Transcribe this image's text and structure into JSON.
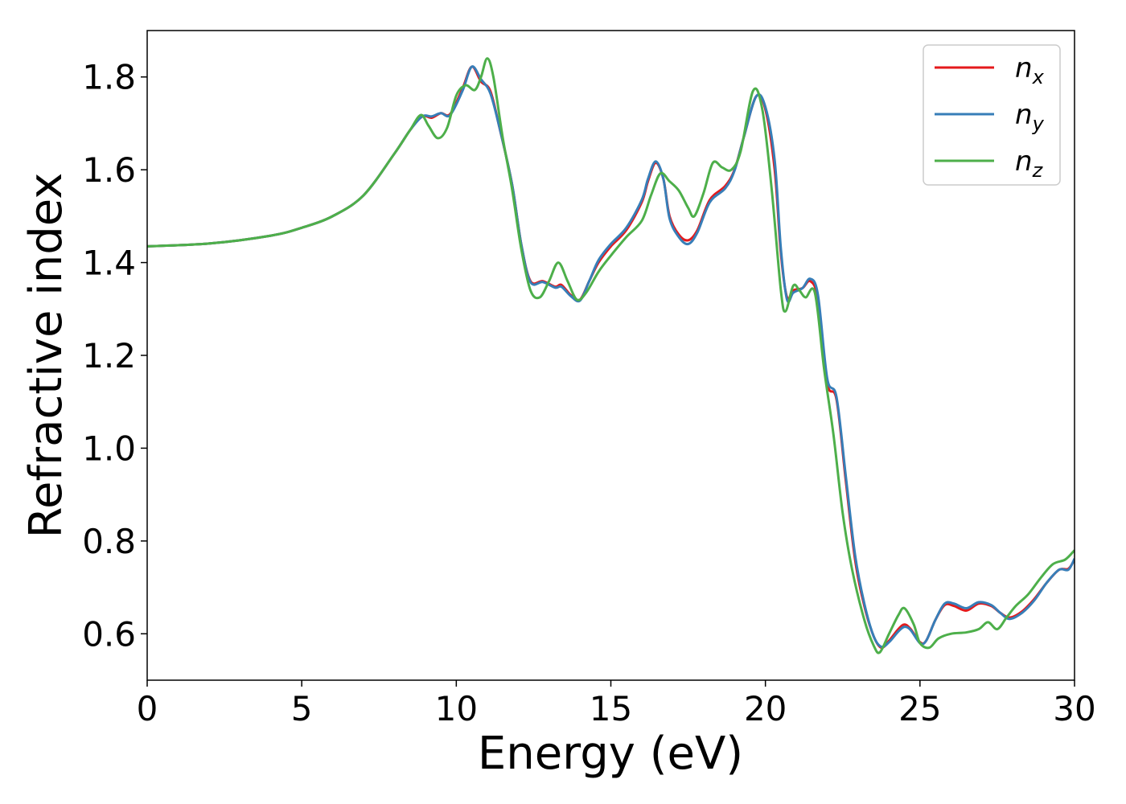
{
  "chart_data": {
    "type": "line",
    "title": "",
    "xlabel": "Energy (eV)",
    "ylabel": "Refractive index",
    "xlim": [
      0,
      30
    ],
    "ylim": [
      0.5,
      1.9
    ],
    "xticks": [
      0,
      5,
      10,
      15,
      20,
      25,
      30
    ],
    "xtick_labels": [
      "0",
      "5",
      "10",
      "15",
      "20",
      "25",
      "30"
    ],
    "yticks": [
      0.6,
      0.8,
      1.0,
      1.2,
      1.4,
      1.6,
      1.8
    ],
    "ytick_labels": [
      "0.6",
      "0.8",
      "1.0",
      "1.2",
      "1.4",
      "1.6",
      "1.8"
    ],
    "grid": false,
    "legend_position": "top-right",
    "series": [
      {
        "name": "n_x",
        "label_base": "n",
        "label_sub": "x",
        "color": "#e41a1c",
        "points": [
          [
            0,
            1.435
          ],
          [
            2,
            1.441
          ],
          [
            4,
            1.458
          ],
          [
            5,
            1.475
          ],
          [
            6,
            1.5
          ],
          [
            7,
            1.545
          ],
          [
            8,
            1.635
          ],
          [
            8.5,
            1.685
          ],
          [
            8.9,
            1.715
          ],
          [
            9.2,
            1.712
          ],
          [
            9.5,
            1.722
          ],
          [
            9.8,
            1.72
          ],
          [
            10.2,
            1.775
          ],
          [
            10.5,
            1.822
          ],
          [
            10.8,
            1.79
          ],
          [
            11.1,
            1.77
          ],
          [
            11.4,
            1.69
          ],
          [
            11.8,
            1.57
          ],
          [
            12.1,
            1.44
          ],
          [
            12.4,
            1.36
          ],
          [
            12.8,
            1.36
          ],
          [
            13.2,
            1.348
          ],
          [
            13.4,
            1.352
          ],
          [
            13.7,
            1.33
          ],
          [
            14.0,
            1.32
          ],
          [
            14.3,
            1.36
          ],
          [
            14.6,
            1.4
          ],
          [
            15.0,
            1.435
          ],
          [
            15.5,
            1.47
          ],
          [
            16.0,
            1.53
          ],
          [
            16.2,
            1.575
          ],
          [
            16.45,
            1.615
          ],
          [
            16.7,
            1.58
          ],
          [
            16.9,
            1.5
          ],
          [
            17.2,
            1.46
          ],
          [
            17.5,
            1.448
          ],
          [
            17.8,
            1.47
          ],
          [
            18.2,
            1.535
          ],
          [
            18.7,
            1.565
          ],
          [
            19.0,
            1.6
          ],
          [
            19.3,
            1.67
          ],
          [
            19.7,
            1.758
          ],
          [
            20.0,
            1.73
          ],
          [
            20.3,
            1.6
          ],
          [
            20.5,
            1.42
          ],
          [
            20.7,
            1.325
          ],
          [
            20.9,
            1.34
          ],
          [
            21.2,
            1.345
          ],
          [
            21.45,
            1.36
          ],
          [
            21.7,
            1.32
          ],
          [
            22.0,
            1.14
          ],
          [
            22.3,
            1.105
          ],
          [
            22.6,
            0.93
          ],
          [
            22.9,
            0.76
          ],
          [
            23.2,
            0.66
          ],
          [
            23.5,
            0.595
          ],
          [
            23.75,
            0.57
          ],
          [
            24.0,
            0.585
          ],
          [
            24.3,
            0.61
          ],
          [
            24.5,
            0.62
          ],
          [
            24.7,
            0.61
          ],
          [
            25.0,
            0.582
          ],
          [
            25.2,
            0.585
          ],
          [
            25.5,
            0.63
          ],
          [
            25.8,
            0.662
          ],
          [
            26.1,
            0.66
          ],
          [
            26.5,
            0.65
          ],
          [
            26.9,
            0.665
          ],
          [
            27.3,
            0.66
          ],
          [
            27.6,
            0.645
          ],
          [
            27.9,
            0.635
          ],
          [
            28.3,
            0.648
          ],
          [
            28.7,
            0.675
          ],
          [
            29.1,
            0.71
          ],
          [
            29.5,
            0.738
          ],
          [
            29.8,
            0.74
          ],
          [
            30.0,
            0.76
          ]
        ]
      },
      {
        "name": "n_y",
        "label_base": "n",
        "label_sub": "y",
        "color": "#377eb8",
        "points": [
          [
            0,
            1.435
          ],
          [
            2,
            1.441
          ],
          [
            4,
            1.458
          ],
          [
            5,
            1.475
          ],
          [
            6,
            1.5
          ],
          [
            7,
            1.545
          ],
          [
            8,
            1.635
          ],
          [
            8.5,
            1.685
          ],
          [
            8.9,
            1.715
          ],
          [
            9.2,
            1.715
          ],
          [
            9.5,
            1.722
          ],
          [
            9.8,
            1.718
          ],
          [
            10.2,
            1.77
          ],
          [
            10.5,
            1.822
          ],
          [
            10.8,
            1.795
          ],
          [
            11.1,
            1.765
          ],
          [
            11.4,
            1.69
          ],
          [
            11.8,
            1.57
          ],
          [
            12.1,
            1.44
          ],
          [
            12.4,
            1.358
          ],
          [
            12.8,
            1.358
          ],
          [
            13.2,
            1.346
          ],
          [
            13.4,
            1.348
          ],
          [
            13.7,
            1.328
          ],
          [
            14.0,
            1.318
          ],
          [
            14.3,
            1.36
          ],
          [
            14.6,
            1.405
          ],
          [
            15.0,
            1.44
          ],
          [
            15.5,
            1.475
          ],
          [
            16.0,
            1.535
          ],
          [
            16.2,
            1.58
          ],
          [
            16.45,
            1.618
          ],
          [
            16.7,
            1.58
          ],
          [
            16.9,
            1.495
          ],
          [
            17.2,
            1.455
          ],
          [
            17.5,
            1.44
          ],
          [
            17.8,
            1.465
          ],
          [
            18.2,
            1.53
          ],
          [
            18.7,
            1.56
          ],
          [
            19.0,
            1.598
          ],
          [
            19.3,
            1.67
          ],
          [
            19.7,
            1.758
          ],
          [
            20.0,
            1.735
          ],
          [
            20.3,
            1.62
          ],
          [
            20.5,
            1.43
          ],
          [
            20.7,
            1.32
          ],
          [
            20.9,
            1.335
          ],
          [
            21.2,
            1.345
          ],
          [
            21.45,
            1.365
          ],
          [
            21.7,
            1.33
          ],
          [
            22.0,
            1.15
          ],
          [
            22.3,
            1.11
          ],
          [
            22.6,
            0.94
          ],
          [
            22.9,
            0.77
          ],
          [
            23.2,
            0.665
          ],
          [
            23.5,
            0.595
          ],
          [
            23.75,
            0.572
          ],
          [
            24.0,
            0.582
          ],
          [
            24.3,
            0.605
          ],
          [
            24.5,
            0.615
          ],
          [
            24.7,
            0.608
          ],
          [
            25.0,
            0.58
          ],
          [
            25.2,
            0.585
          ],
          [
            25.5,
            0.63
          ],
          [
            25.8,
            0.665
          ],
          [
            26.1,
            0.665
          ],
          [
            26.5,
            0.655
          ],
          [
            26.9,
            0.668
          ],
          [
            27.3,
            0.662
          ],
          [
            27.6,
            0.645
          ],
          [
            27.9,
            0.632
          ],
          [
            28.3,
            0.645
          ],
          [
            28.7,
            0.672
          ],
          [
            29.1,
            0.71
          ],
          [
            29.5,
            0.738
          ],
          [
            29.8,
            0.738
          ],
          [
            30.0,
            0.762
          ]
        ]
      },
      {
        "name": "n_z",
        "label_base": "n",
        "label_sub": "z",
        "color": "#4daf4a",
        "points": [
          [
            0,
            1.435
          ],
          [
            2,
            1.441
          ],
          [
            4,
            1.458
          ],
          [
            5,
            1.475
          ],
          [
            6,
            1.5
          ],
          [
            7,
            1.545
          ],
          [
            8,
            1.635
          ],
          [
            8.5,
            1.685
          ],
          [
            8.85,
            1.718
          ],
          [
            9.1,
            1.695
          ],
          [
            9.4,
            1.668
          ],
          [
            9.7,
            1.69
          ],
          [
            10.0,
            1.76
          ],
          [
            10.3,
            1.782
          ],
          [
            10.6,
            1.772
          ],
          [
            10.8,
            1.8
          ],
          [
            11.0,
            1.84
          ],
          [
            11.2,
            1.8
          ],
          [
            11.5,
            1.67
          ],
          [
            11.8,
            1.56
          ],
          [
            12.1,
            1.43
          ],
          [
            12.4,
            1.34
          ],
          [
            12.7,
            1.325
          ],
          [
            13.0,
            1.36
          ],
          [
            13.3,
            1.4
          ],
          [
            13.6,
            1.36
          ],
          [
            13.9,
            1.32
          ],
          [
            14.2,
            1.335
          ],
          [
            14.6,
            1.38
          ],
          [
            15.0,
            1.415
          ],
          [
            15.5,
            1.455
          ],
          [
            16.0,
            1.49
          ],
          [
            16.3,
            1.545
          ],
          [
            16.6,
            1.592
          ],
          [
            16.9,
            1.575
          ],
          [
            17.2,
            1.555
          ],
          [
            17.5,
            1.518
          ],
          [
            17.7,
            1.5
          ],
          [
            18.0,
            1.55
          ],
          [
            18.3,
            1.615
          ],
          [
            18.6,
            1.605
          ],
          [
            18.9,
            1.6
          ],
          [
            19.2,
            1.64
          ],
          [
            19.6,
            1.77
          ],
          [
            19.9,
            1.73
          ],
          [
            20.2,
            1.56
          ],
          [
            20.5,
            1.34
          ],
          [
            20.65,
            1.295
          ],
          [
            20.9,
            1.35
          ],
          [
            21.1,
            1.34
          ],
          [
            21.3,
            1.325
          ],
          [
            21.6,
            1.335
          ],
          [
            21.9,
            1.17
          ],
          [
            22.2,
            1.03
          ],
          [
            22.5,
            0.86
          ],
          [
            22.8,
            0.74
          ],
          [
            23.2,
            0.63
          ],
          [
            23.5,
            0.575
          ],
          [
            23.7,
            0.56
          ],
          [
            24.0,
            0.6
          ],
          [
            24.3,
            0.64
          ],
          [
            24.5,
            0.655
          ],
          [
            24.8,
            0.62
          ],
          [
            25.0,
            0.58
          ],
          [
            25.3,
            0.57
          ],
          [
            25.6,
            0.59
          ],
          [
            26.0,
            0.6
          ],
          [
            26.5,
            0.603
          ],
          [
            26.9,
            0.61
          ],
          [
            27.2,
            0.625
          ],
          [
            27.5,
            0.61
          ],
          [
            27.8,
            0.635
          ],
          [
            28.1,
            0.66
          ],
          [
            28.5,
            0.685
          ],
          [
            28.9,
            0.72
          ],
          [
            29.3,
            0.75
          ],
          [
            29.7,
            0.76
          ],
          [
            30.0,
            0.78
          ]
        ]
      }
    ]
  }
}
